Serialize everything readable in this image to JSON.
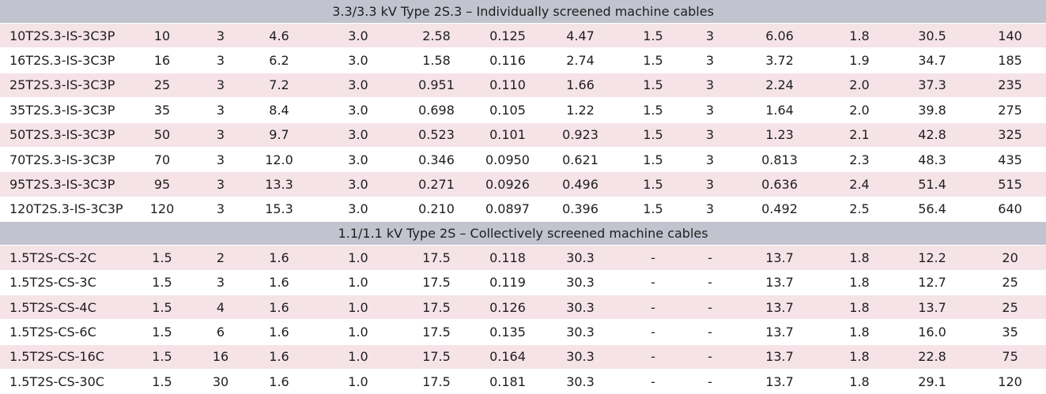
{
  "colors": {
    "section_header_bg": "#c1c4cf",
    "shaded_row_bg": "#f5e3e8",
    "plain_row_bg": "#ffffff",
    "text": "#1e1e1e"
  },
  "sections": [
    {
      "title": "3.3/3.3 kV Type 2S.3 – Individually screened machine cables",
      "rows": [
        [
          "10T2S.3-IS-3C3P",
          "10",
          "3",
          "4.6",
          "3.0",
          "2.58",
          "0.125",
          "4.47",
          "1.5",
          "3",
          "6.06",
          "1.8",
          "30.5",
          "140"
        ],
        [
          "16T2S.3-IS-3C3P",
          "16",
          "3",
          "6.2",
          "3.0",
          "1.58",
          "0.116",
          "2.74",
          "1.5",
          "3",
          "3.72",
          "1.9",
          "34.7",
          "185"
        ],
        [
          "25T2S.3-IS-3C3P",
          "25",
          "3",
          "7.2",
          "3.0",
          "0.951",
          "0.110",
          "1.66",
          "1.5",
          "3",
          "2.24",
          "2.0",
          "37.3",
          "235"
        ],
        [
          "35T2S.3-IS-3C3P",
          "35",
          "3",
          "8.4",
          "3.0",
          "0.698",
          "0.105",
          "1.22",
          "1.5",
          "3",
          "1.64",
          "2.0",
          "39.8",
          "275"
        ],
        [
          "50T2S.3-IS-3C3P",
          "50",
          "3",
          "9.7",
          "3.0",
          "0.523",
          "0.101",
          "0.923",
          "1.5",
          "3",
          "1.23",
          "2.1",
          "42.8",
          "325"
        ],
        [
          "70T2S.3-IS-3C3P",
          "70",
          "3",
          "12.0",
          "3.0",
          "0.346",
          "0.0950",
          "0.621",
          "1.5",
          "3",
          "0.813",
          "2.3",
          "48.3",
          "435"
        ],
        [
          "95T2S.3-IS-3C3P",
          "95",
          "3",
          "13.3",
          "3.0",
          "0.271",
          "0.0926",
          "0.496",
          "1.5",
          "3",
          "0.636",
          "2.4",
          "51.4",
          "515"
        ],
        [
          "120T2S.3-IS-3C3P",
          "120",
          "3",
          "15.3",
          "3.0",
          "0.210",
          "0.0897",
          "0.396",
          "1.5",
          "3",
          "0.492",
          "2.5",
          "56.4",
          "640"
        ]
      ]
    },
    {
      "title": "1.1/1.1 kV Type 2S – Collectively screened machine cables",
      "rows": [
        [
          "1.5T2S-CS-2C",
          "1.5",
          "2",
          "1.6",
          "1.0",
          "17.5",
          "0.118",
          "30.3",
          "-",
          "-",
          "13.7",
          "1.8",
          "12.2",
          "20"
        ],
        [
          "1.5T2S-CS-3C",
          "1.5",
          "3",
          "1.6",
          "1.0",
          "17.5",
          "0.119",
          "30.3",
          "-",
          "-",
          "13.7",
          "1.8",
          "12.7",
          "25"
        ],
        [
          "1.5T2S-CS-4C",
          "1.5",
          "4",
          "1.6",
          "1.0",
          "17.5",
          "0.126",
          "30.3",
          "-",
          "-",
          "13.7",
          "1.8",
          "13.7",
          "25"
        ],
        [
          "1.5T2S-CS-6C",
          "1.5",
          "6",
          "1.6",
          "1.0",
          "17.5",
          "0.135",
          "30.3",
          "-",
          "-",
          "13.7",
          "1.8",
          "16.0",
          "35"
        ],
        [
          "1.5T2S-CS-16C",
          "1.5",
          "16",
          "1.6",
          "1.0",
          "17.5",
          "0.164",
          "30.3",
          "-",
          "-",
          "13.7",
          "1.8",
          "22.8",
          "75"
        ],
        [
          "1.5T2S-CS-30C",
          "1.5",
          "30",
          "1.6",
          "1.0",
          "17.5",
          "0.181",
          "30.3",
          "-",
          "-",
          "13.7",
          "1.8",
          "29.1",
          "120"
        ]
      ]
    }
  ]
}
